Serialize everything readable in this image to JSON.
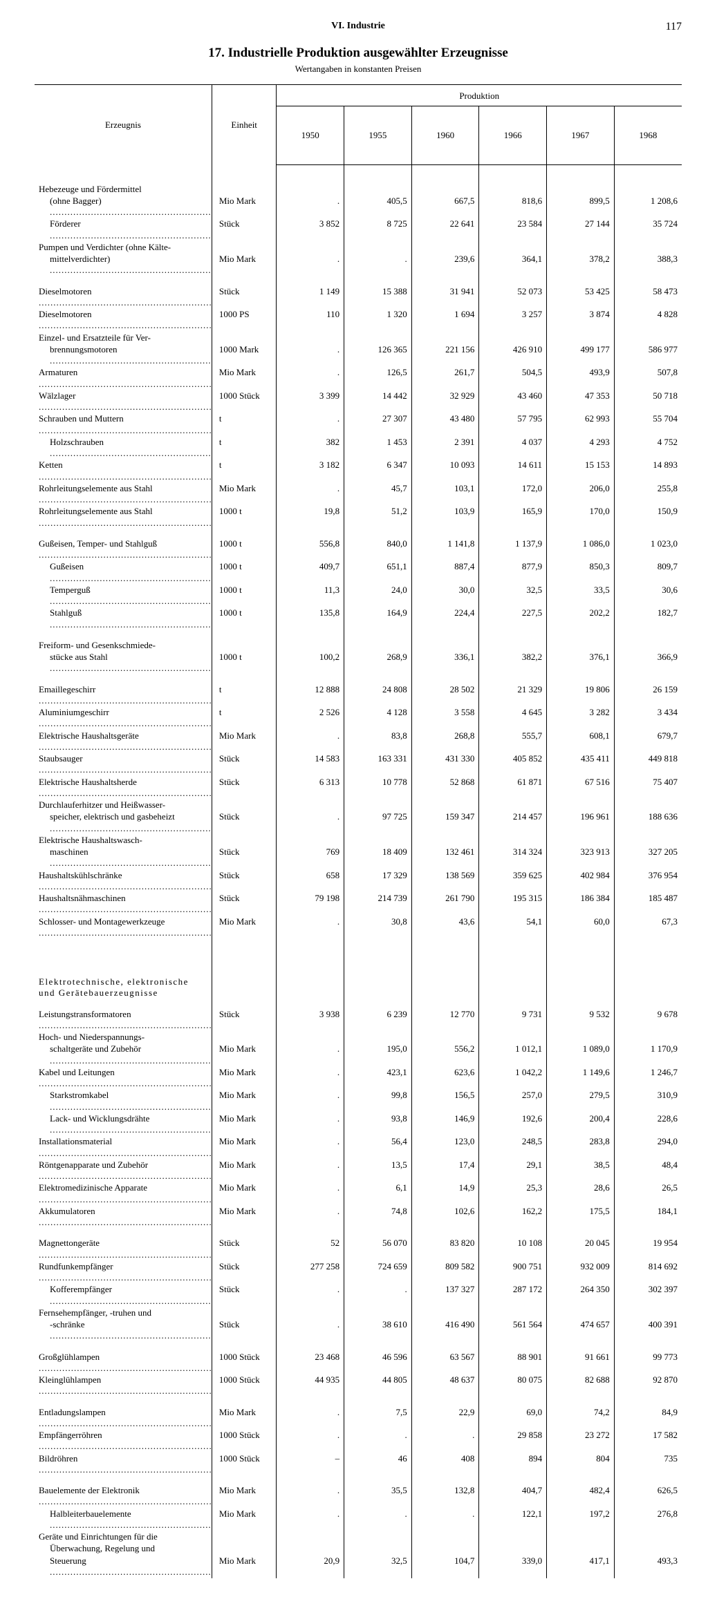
{
  "page": {
    "chapter": "VI. Industrie",
    "number": "117"
  },
  "title": "17. Industrielle Produktion ausgewählter Erzeugnisse",
  "subtitle": "Wertangaben in konstanten Preisen",
  "head": {
    "product": "Erzeugnis",
    "unit": "Einheit",
    "production": "Produktion",
    "years": [
      "1950",
      "1955",
      "1960",
      "1966",
      "1967",
      "1968"
    ]
  },
  "rows": [
    {
      "t": "gap"
    },
    {
      "t": "gap"
    },
    {
      "t": "r",
      "i": 0,
      "d": "Hebezeuge und Fördermittel",
      "nodots": true
    },
    {
      "t": "r",
      "i": 1,
      "d": "(ohne Bagger)",
      "u": "Mio Mark",
      "v": [
        ".",
        "405,5",
        "667,5",
        "818,6",
        "899,5",
        "1 208,6"
      ]
    },
    {
      "t": "r",
      "i": 1,
      "d": "Förderer",
      "u": "Stück",
      "v": [
        "3 852",
        "8 725",
        "22 641",
        "23 584",
        "27 144",
        "35 724"
      ]
    },
    {
      "t": "r",
      "i": 0,
      "d": "Pumpen und Verdichter (ohne Kälte-",
      "nodots": true
    },
    {
      "t": "r",
      "i": 1,
      "d": "mittelverdichter)",
      "u": "Mio Mark",
      "v": [
        ".",
        ".",
        "239,6",
        "364,1",
        "378,2",
        "388,3"
      ]
    },
    {
      "t": "gap"
    },
    {
      "t": "r",
      "i": 0,
      "d": "Dieselmotoren",
      "u": "Stück",
      "v": [
        "1 149",
        "15 388",
        "31 941",
        "52 073",
        "53 425",
        "58 473"
      ]
    },
    {
      "t": "r",
      "i": 0,
      "d": "Dieselmotoren",
      "u": "1000 PS",
      "v": [
        "110",
        "1 320",
        "1 694",
        "3 257",
        "3 874",
        "4 828"
      ]
    },
    {
      "t": "r",
      "i": 0,
      "d": "Einzel- und Ersatzteile für Ver-",
      "nodots": true
    },
    {
      "t": "r",
      "i": 1,
      "d": "brennungsmotoren",
      "u": "1000 Mark",
      "v": [
        ".",
        "126 365",
        "221 156",
        "426 910",
        "499 177",
        "586 977"
      ]
    },
    {
      "t": "r",
      "i": 0,
      "d": "Armaturen",
      "u": "Mio Mark",
      "v": [
        ".",
        "126,5",
        "261,7",
        "504,5",
        "493,9",
        "507,8"
      ]
    },
    {
      "t": "r",
      "i": 0,
      "d": "Wälzlager",
      "u": "1000 Stück",
      "v": [
        "3 399",
        "14 442",
        "32 929",
        "43 460",
        "47 353",
        "50 718"
      ]
    },
    {
      "t": "r",
      "i": 0,
      "d": "Schrauben und Muttern",
      "u": "t",
      "v": [
        ".",
        "27 307",
        "43 480",
        "57 795",
        "62 993",
        "55 704"
      ]
    },
    {
      "t": "r",
      "i": 1,
      "d": "Holzschrauben",
      "u": "t",
      "v": [
        "382",
        "1 453",
        "2 391",
        "4 037",
        "4 293",
        "4 752"
      ]
    },
    {
      "t": "r",
      "i": 0,
      "d": "Ketten",
      "u": "t",
      "v": [
        "3 182",
        "6 347",
        "10 093",
        "14 611",
        "15 153",
        "14 893"
      ]
    },
    {
      "t": "r",
      "i": 0,
      "d": "Rohrleitungselemente aus Stahl",
      "u": "Mio Mark",
      "v": [
        ".",
        "45,7",
        "103,1",
        "172,0",
        "206,0",
        "255,8"
      ]
    },
    {
      "t": "r",
      "i": 0,
      "d": "Rohrleitungselemente aus Stahl",
      "u": "1000 t",
      "v": [
        "19,8",
        "51,2",
        "103,9",
        "165,9",
        "170,0",
        "150,9"
      ]
    },
    {
      "t": "gap"
    },
    {
      "t": "r",
      "i": 0,
      "d": "Gußeisen, Temper- und Stahlguß",
      "u": "1000 t",
      "v": [
        "556,8",
        "840,0",
        "1 141,8",
        "1 137,9",
        "1 086,0",
        "1 023,0"
      ]
    },
    {
      "t": "r",
      "i": 1,
      "d": "Gußeisen",
      "u": "1000 t",
      "v": [
        "409,7",
        "651,1",
        "887,4",
        "877,9",
        "850,3",
        "809,7"
      ]
    },
    {
      "t": "r",
      "i": 1,
      "d": "Temperguß",
      "u": "1000 t",
      "v": [
        "11,3",
        "24,0",
        "30,0",
        "32,5",
        "33,5",
        "30,6"
      ]
    },
    {
      "t": "r",
      "i": 1,
      "d": "Stahlguß",
      "u": "1000 t",
      "v": [
        "135,8",
        "164,9",
        "224,4",
        "227,5",
        "202,2",
        "182,7"
      ]
    },
    {
      "t": "gap"
    },
    {
      "t": "r",
      "i": 0,
      "d": "Freiform- und Gesenkschmiede-",
      "nodots": true
    },
    {
      "t": "r",
      "i": 1,
      "d": "stücke aus Stahl",
      "u": "1000 t",
      "v": [
        "100,2",
        "268,9",
        "336,1",
        "382,2",
        "376,1",
        "366,9"
      ]
    },
    {
      "t": "gap"
    },
    {
      "t": "r",
      "i": 0,
      "d": "Emaillegeschirr",
      "u": "t",
      "v": [
        "12 888",
        "24 808",
        "28 502",
        "21 329",
        "19 806",
        "26 159"
      ]
    },
    {
      "t": "r",
      "i": 0,
      "d": "Aluminiumgeschirr",
      "u": "t",
      "v": [
        "2 526",
        "4 128",
        "3 558",
        "4 645",
        "3 282",
        "3 434"
      ]
    },
    {
      "t": "r",
      "i": 0,
      "d": "Elektrische Haushaltsgeräte",
      "u": "Mio Mark",
      "v": [
        ".",
        "83,8",
        "268,8",
        "555,7",
        "608,1",
        "679,7"
      ]
    },
    {
      "t": "r",
      "i": 0,
      "d": "Staubsauger",
      "u": "Stück",
      "v": [
        "14 583",
        "163 331",
        "431 330",
        "405 852",
        "435 411",
        "449 818"
      ]
    },
    {
      "t": "r",
      "i": 0,
      "d": "Elektrische Haushaltsherde",
      "u": "Stück",
      "v": [
        "6 313",
        "10 778",
        "52 868",
        "61 871",
        "67 516",
        "75 407"
      ]
    },
    {
      "t": "r",
      "i": 0,
      "d": "Durchlauferhitzer und Heißwasser-",
      "nodots": true
    },
    {
      "t": "r",
      "i": 1,
      "d": "speicher, elektrisch und gasbeheizt",
      "u": "Stück",
      "v": [
        ".",
        "97 725",
        "159 347",
        "214 457",
        "196 961",
        "188 636"
      ]
    },
    {
      "t": "r",
      "i": 0,
      "d": "Elektrische Haushaltswasch-",
      "nodots": true
    },
    {
      "t": "r",
      "i": 1,
      "d": "maschinen",
      "u": "Stück",
      "v": [
        "769",
        "18 409",
        "132 461",
        "314 324",
        "323 913",
        "327 205"
      ]
    },
    {
      "t": "r",
      "i": 0,
      "d": "Haushaltskühlschränke",
      "u": "Stück",
      "v": [
        "658",
        "17 329",
        "138 569",
        "359 625",
        "402 984",
        "376 954"
      ]
    },
    {
      "t": "r",
      "i": 0,
      "d": "Haushaltsnähmaschinen",
      "u": "Stück",
      "v": [
        "79 198",
        "214 739",
        "261 790",
        "195 315",
        "186 384",
        "185 487"
      ]
    },
    {
      "t": "r",
      "i": 0,
      "d": "Schlosser- und Montagewerkzeuge",
      "u": "Mio Mark",
      "v": [
        ".",
        "30,8",
        "43,6",
        "54,1",
        "60,0",
        "67,3"
      ]
    },
    {
      "t": "biggap"
    },
    {
      "t": "gap"
    },
    {
      "t": "sec",
      "d": "Elektrotechnische, elektronische und Gerätebauerzeugnisse"
    },
    {
      "t": "gap"
    },
    {
      "t": "r",
      "i": 0,
      "d": "Leistungstransformatoren",
      "u": "Stück",
      "v": [
        "3 938",
        "6 239",
        "12 770",
        "9 731",
        "9 532",
        "9 678"
      ]
    },
    {
      "t": "r",
      "i": 0,
      "d": "Hoch- und Niederspannungs-",
      "nodots": true
    },
    {
      "t": "r",
      "i": 1,
      "d": "schaltgeräte und Zubehör",
      "u": "Mio Mark",
      "v": [
        ".",
        "195,0",
        "556,2",
        "1 012,1",
        "1 089,0",
        "1 170,9"
      ]
    },
    {
      "t": "r",
      "i": 0,
      "d": "Kabel und Leitungen",
      "u": "Mio Mark",
      "v": [
        ".",
        "423,1",
        "623,6",
        "1 042,2",
        "1 149,6",
        "1 246,7"
      ]
    },
    {
      "t": "r",
      "i": 1,
      "d": "Starkstromkabel",
      "u": "Mio Mark",
      "v": [
        ".",
        "99,8",
        "156,5",
        "257,0",
        "279,5",
        "310,9"
      ]
    },
    {
      "t": "r",
      "i": 1,
      "d": "Lack- und Wicklungsdrähte",
      "u": "Mio Mark",
      "v": [
        ".",
        "93,8",
        "146,9",
        "192,6",
        "200,4",
        "228,6"
      ]
    },
    {
      "t": "r",
      "i": 0,
      "d": "Installationsmaterial",
      "u": "Mio Mark",
      "v": [
        ".",
        "56,4",
        "123,0",
        "248,5",
        "283,8",
        "294,0"
      ]
    },
    {
      "t": "r",
      "i": 0,
      "d": "Röntgenapparate und Zubehör",
      "u": "Mio Mark",
      "v": [
        ".",
        "13,5",
        "17,4",
        "29,1",
        "38,5",
        "48,4"
      ]
    },
    {
      "t": "r",
      "i": 0,
      "d": "Elektromedizinische Apparate",
      "u": "Mio Mark",
      "v": [
        ".",
        "6,1",
        "14,9",
        "25,3",
        "28,6",
        "26,5"
      ]
    },
    {
      "t": "r",
      "i": 0,
      "d": "Akkumulatoren",
      "u": "Mio Mark",
      "v": [
        ".",
        "74,8",
        "102,6",
        "162,2",
        "175,5",
        "184,1"
      ]
    },
    {
      "t": "gap"
    },
    {
      "t": "r",
      "i": 0,
      "d": "Magnettongeräte",
      "u": "Stück",
      "v": [
        "52",
        "56 070",
        "83 820",
        "10 108",
        "20 045",
        "19 954"
      ]
    },
    {
      "t": "r",
      "i": 0,
      "d": "Rundfunkempfänger",
      "u": "Stück",
      "v": [
        "277 258",
        "724 659",
        "809 582",
        "900 751",
        "932 009",
        "814 692"
      ]
    },
    {
      "t": "r",
      "i": 1,
      "d": "Kofferempfänger",
      "u": "Stück",
      "v": [
        ".",
        ".",
        "137 327",
        "287 172",
        "264 350",
        "302 397"
      ]
    },
    {
      "t": "r",
      "i": 0,
      "d": "Fernsehempfänger, -truhen und",
      "nodots": true
    },
    {
      "t": "r",
      "i": 1,
      "d": "-schränke",
      "u": "Stück",
      "v": [
        ".",
        "38 610",
        "416 490",
        "561 564",
        "474 657",
        "400 391"
      ]
    },
    {
      "t": "gap"
    },
    {
      "t": "r",
      "i": 0,
      "d": "Großglühlampen",
      "u": "1000 Stück",
      "v": [
        "23 468",
        "46 596",
        "63 567",
        "88 901",
        "91 661",
        "99 773"
      ]
    },
    {
      "t": "r",
      "i": 0,
      "d": "Kleinglühlampen",
      "u": "1000 Stück",
      "v": [
        "44 935",
        "44 805",
        "48 637",
        "80 075",
        "82 688",
        "92 870"
      ]
    },
    {
      "t": "gap"
    },
    {
      "t": "r",
      "i": 0,
      "d": "Entladungslampen",
      "u": "Mio Mark",
      "v": [
        ".",
        "7,5",
        "22,9",
        "69,0",
        "74,2",
        "84,9"
      ]
    },
    {
      "t": "r",
      "i": 0,
      "d": "Empfängerröhren",
      "u": "1000 Stück",
      "v": [
        ".",
        ".",
        ".",
        "29 858",
        "23 272",
        "17 582"
      ]
    },
    {
      "t": "r",
      "i": 0,
      "d": "Bildröhren",
      "u": "1000 Stück",
      "v": [
        "–",
        "46",
        "408",
        "894",
        "804",
        "735"
      ]
    },
    {
      "t": "gap"
    },
    {
      "t": "r",
      "i": 0,
      "d": "Bauelemente der Elektronik",
      "u": "Mio Mark",
      "v": [
        ".",
        "35,5",
        "132,8",
        "404,7",
        "482,4",
        "626,5"
      ]
    },
    {
      "t": "r",
      "i": 1,
      "d": "Halbleiterbauelemente",
      "u": "Mio Mark",
      "v": [
        ".",
        ".",
        ".",
        "122,1",
        "197,2",
        "276,8"
      ]
    },
    {
      "t": "r",
      "i": 0,
      "d": "Geräte und Einrichtungen für die",
      "nodots": true
    },
    {
      "t": "r",
      "i": 1,
      "d": "Überwachung, Regelung und",
      "nodots": true
    },
    {
      "t": "r",
      "i": 1,
      "d": "Steuerung",
      "u": "Mio Mark",
      "v": [
        "20,9",
        "32,5",
        "104,7",
        "339,0",
        "417,1",
        "493,3"
      ]
    }
  ]
}
